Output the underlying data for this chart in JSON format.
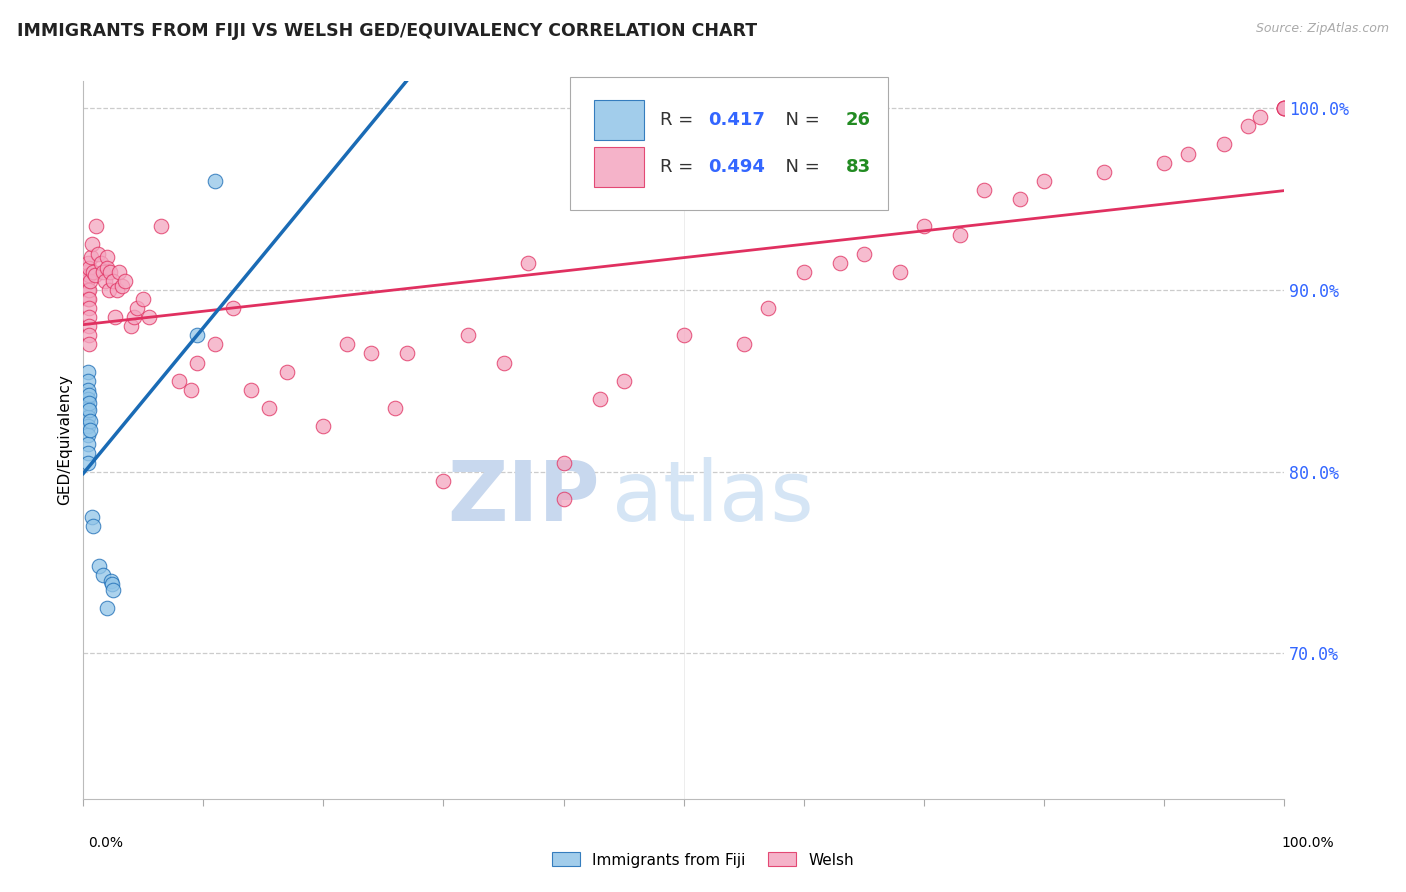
{
  "title": "IMMIGRANTS FROM FIJI VS WELSH GED/EQUIVALENCY CORRELATION CHART",
  "source": "Source: ZipAtlas.com",
  "ylabel": "GED/Equivalency",
  "right_yticks": [
    70.0,
    80.0,
    90.0,
    100.0
  ],
  "fiji_color": "#92c5e8",
  "welsh_color": "#f4a6c0",
  "fiji_line_color": "#1a6bb5",
  "welsh_line_color": "#e03060",
  "fiji_r": "0.417",
  "fiji_n": "26",
  "welsh_r": "0.494",
  "welsh_n": "83",
  "fiji_x": [
    0.4,
    0.4,
    0.4,
    0.4,
    0.4,
    0.4,
    0.4,
    0.4,
    0.4,
    0.4,
    0.4,
    0.5,
    0.5,
    0.5,
    0.6,
    0.6,
    0.7,
    0.8,
    1.3,
    1.6,
    2.0,
    2.3,
    2.4,
    2.5,
    9.5,
    11.0
  ],
  "fiji_y": [
    85.5,
    85.0,
    84.5,
    84.0,
    83.5,
    83.0,
    82.5,
    82.0,
    81.5,
    81.0,
    80.5,
    84.2,
    83.8,
    83.4,
    82.8,
    82.3,
    77.5,
    77.0,
    74.8,
    74.3,
    72.5,
    74.0,
    73.8,
    73.5,
    87.5,
    96.0
  ],
  "welsh_x": [
    0.3,
    0.35,
    0.4,
    0.4,
    0.4,
    0.45,
    0.5,
    0.5,
    0.5,
    0.5,
    0.5,
    0.5,
    0.5,
    0.5,
    0.6,
    0.65,
    0.7,
    0.8,
    1.0,
    1.1,
    1.2,
    1.5,
    1.6,
    1.8,
    2.0,
    2.0,
    2.1,
    2.2,
    2.5,
    2.6,
    2.8,
    3.0,
    3.2,
    3.5,
    4.0,
    4.2,
    4.5,
    5.0,
    5.5,
    6.5,
    8.0,
    9.0,
    9.5,
    11.0,
    12.5,
    14.0,
    15.5,
    17.0,
    20.0,
    22.0,
    24.0,
    26.0,
    27.0,
    30.0,
    32.0,
    35.0,
    37.0,
    40.0,
    40.0,
    43.0,
    45.0,
    50.0,
    55.0,
    57.0,
    60.0,
    63.0,
    65.0,
    68.0,
    70.0,
    73.0,
    75.0,
    78.0,
    80.0,
    85.0,
    90.0,
    92.0,
    95.0,
    97.0,
    98.0,
    100.0,
    100.0,
    100.0,
    100.0
  ],
  "welsh_y": [
    91.0,
    90.5,
    91.5,
    90.0,
    89.5,
    90.8,
    91.2,
    90.0,
    89.5,
    89.0,
    88.5,
    88.0,
    87.5,
    87.0,
    90.5,
    91.8,
    92.5,
    91.0,
    90.8,
    93.5,
    92.0,
    91.5,
    91.0,
    90.5,
    91.8,
    91.2,
    90.0,
    91.0,
    90.5,
    88.5,
    90.0,
    91.0,
    90.2,
    90.5,
    88.0,
    88.5,
    89.0,
    89.5,
    88.5,
    93.5,
    85.0,
    84.5,
    86.0,
    87.0,
    89.0,
    84.5,
    83.5,
    85.5,
    82.5,
    87.0,
    86.5,
    83.5,
    86.5,
    79.5,
    87.5,
    86.0,
    91.5,
    80.5,
    78.5,
    84.0,
    85.0,
    87.5,
    87.0,
    89.0,
    91.0,
    91.5,
    92.0,
    91.0,
    93.5,
    93.0,
    95.5,
    95.0,
    96.0,
    96.5,
    97.0,
    97.5,
    98.0,
    99.0,
    99.5,
    100.0,
    100.0,
    100.0,
    100.0
  ],
  "xmin": 0.0,
  "xmax": 100.0,
  "ymin": 62.0,
  "ymax": 101.5,
  "figwidth": 14.06,
  "figheight": 8.92
}
